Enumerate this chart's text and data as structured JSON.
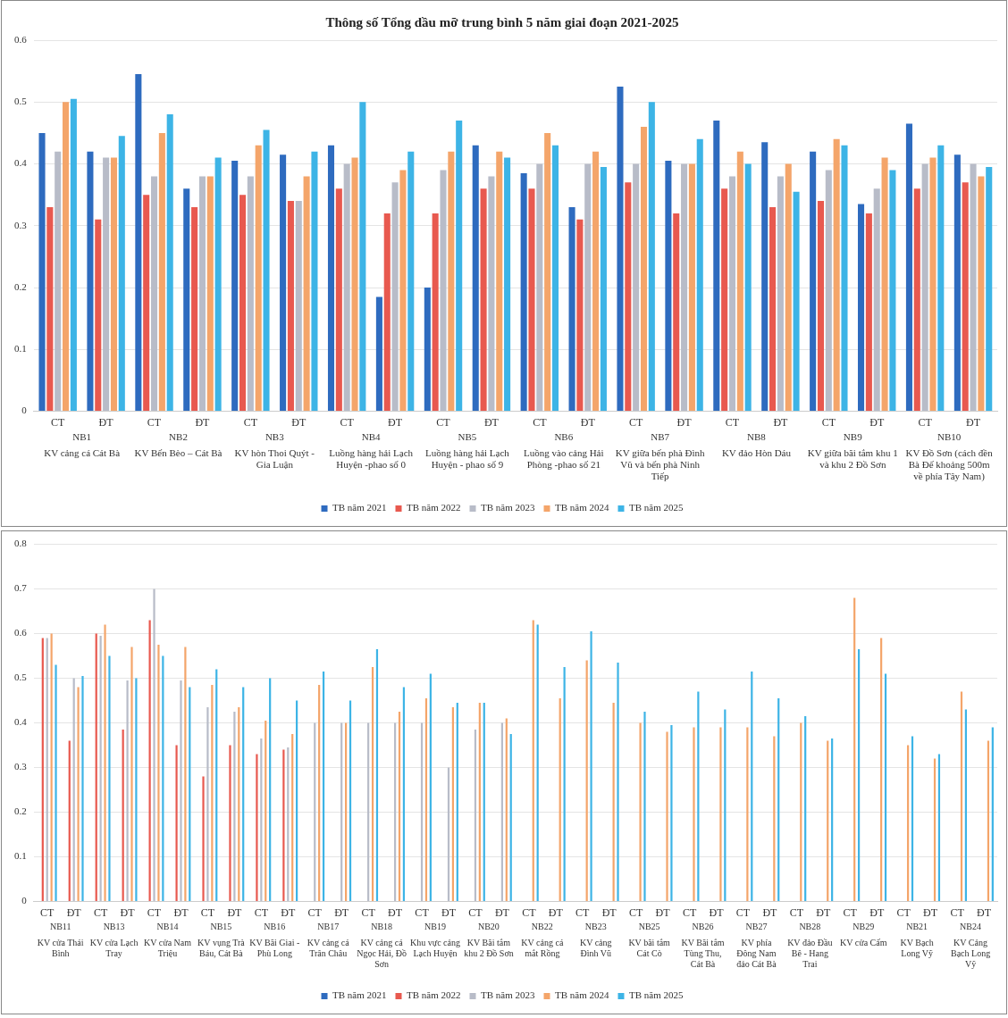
{
  "chart_data": [
    {
      "type": "bar",
      "title": "Thông số Tổng dầu mỡ trung bình 5 năm giai đoạn 2021-2025",
      "categories": [
        "CT",
        "ĐT",
        "CT",
        "ĐT",
        "CT",
        "ĐT",
        "CT",
        "ĐT",
        "CT",
        "ĐT",
        "CT",
        "ĐT",
        "CT",
        "ĐT",
        "CT",
        "ĐT",
        "CT",
        "ĐT",
        "CT",
        "ĐT"
      ],
      "series": [
        {
          "name": "TB năm 2021",
          "color": "#2e6bbf",
          "values": [
            0.45,
            0.42,
            0.545,
            0.36,
            0.405,
            0.415,
            0.43,
            0.185,
            0.2,
            0.43,
            0.385,
            0.33,
            0.525,
            0.405,
            0.47,
            0.435,
            0.42,
            0.335,
            0.465,
            0.415
          ]
        },
        {
          "name": "TB năm 2022",
          "color": "#e8594f",
          "values": [
            0.33,
            0.31,
            0.35,
            0.33,
            0.35,
            0.34,
            0.36,
            0.32,
            0.32,
            0.36,
            0.36,
            0.31,
            0.37,
            0.32,
            0.36,
            0.33,
            0.34,
            0.32,
            0.36,
            0.37
          ]
        },
        {
          "name": "TB năm 2023",
          "color": "#b8bcc8",
          "values": [
            0.42,
            0.41,
            0.38,
            0.38,
            0.38,
            0.34,
            0.4,
            0.37,
            0.39,
            0.38,
            0.4,
            0.4,
            0.4,
            0.4,
            0.38,
            0.38,
            0.39,
            0.36,
            0.4,
            0.4
          ]
        },
        {
          "name": "TB năm 2024",
          "color": "#f4a56a",
          "values": [
            0.5,
            0.41,
            0.45,
            0.38,
            0.43,
            0.38,
            0.41,
            0.39,
            0.42,
            0.42,
            0.45,
            0.42,
            0.46,
            0.4,
            0.42,
            0.4,
            0.44,
            0.41,
            0.41,
            0.38
          ]
        },
        {
          "name": "TB năm 2025",
          "color": "#3db4e6",
          "values": [
            0.505,
            0.445,
            0.48,
            0.41,
            0.455,
            0.42,
            0.5,
            0.42,
            0.47,
            0.41,
            0.43,
            0.395,
            0.5,
            0.44,
            0.4,
            0.355,
            0.43,
            0.39,
            0.43,
            0.395
          ]
        }
      ],
      "ylim": [
        0,
        0.6
      ],
      "yticks": [
        0,
        0.1,
        0.2,
        0.3,
        0.4,
        0.5,
        0.6
      ],
      "grid": "y",
      "legend": "bottom",
      "annotations": [
        "NB1",
        "KV cảng cá Cát Bà",
        "NB2",
        "KV Bến Bèo – Cát Bà",
        "NB3",
        "KV hòn Thoi Quýt - Gia Luận",
        "NB4",
        "Luồng hàng hải Lạch Huyện -phao số 0",
        "NB5",
        "Luồng hàng hải Lạch Huyện - phao số 9",
        "NB6",
        "Luồng vào cảng Hải Phòng -phao số 21",
        "NB7",
        "KV giữa bến phà Đình Vũ và bến phà Ninh Tiếp",
        "NB8",
        "KV đảo Hòn Dáu",
        "NB9",
        "KV giữa bãi tắm khu 1 và khu 2 Đồ Sơn",
        "NB10",
        "KV Đồ Sơn (cách đền Bà Đế khoảng 500m về phía Tây Nam)"
      ]
    },
    {
      "type": "bar",
      "categories": [
        "CT",
        "ĐT",
        "CT",
        "ĐT",
        "CT",
        "ĐT",
        "CT",
        "ĐT",
        "CT",
        "ĐT",
        "CT",
        "ĐT",
        "CT",
        "ĐT",
        "CT",
        "ĐT",
        "CT",
        "ĐT",
        "CT",
        "ĐT",
        "CT",
        "ĐT",
        "CT",
        "ĐT",
        "CT",
        "ĐT",
        "CT",
        "ĐT",
        "CT",
        "ĐT",
        "CT",
        "ĐT",
        "CT",
        "ĐT",
        "CT",
        "ĐT"
      ],
      "series": [
        {
          "name": "TB năm 2021",
          "color": "#2e6bbf",
          "values": [
            null,
            null,
            null,
            null,
            null,
            null,
            null,
            null,
            null,
            null,
            null,
            null,
            null,
            null,
            null,
            null,
            null,
            null,
            null,
            null,
            null,
            null,
            null,
            null,
            null,
            null,
            null,
            null,
            null,
            null,
            null,
            null,
            null,
            null,
            null,
            null
          ]
        },
        {
          "name": "TB năm 2022",
          "color": "#e8594f",
          "values": [
            0.59,
            0.36,
            0.6,
            0.385,
            0.63,
            0.35,
            0.28,
            0.35,
            0.33,
            0.34,
            null,
            null,
            null,
            null,
            null,
            null,
            null,
            null,
            null,
            null,
            null,
            null,
            null,
            null,
            null,
            null,
            null,
            null,
            null,
            null,
            null,
            null,
            null,
            null,
            null,
            null
          ]
        },
        {
          "name": "TB năm 2023",
          "color": "#b8bcc8",
          "values": [
            0.59,
            0.5,
            0.595,
            0.495,
            0.7,
            0.495,
            0.435,
            0.425,
            0.365,
            0.345,
            0.4,
            0.4,
            0.4,
            0.4,
            0.4,
            0.3,
            0.385,
            0.4,
            null,
            null,
            null,
            null,
            null,
            null,
            null,
            null,
            null,
            null,
            null,
            null,
            null,
            null,
            null,
            null,
            null,
            null
          ]
        },
        {
          "name": "TB năm 2024",
          "color": "#f4a56a",
          "values": [
            0.6,
            0.48,
            0.62,
            0.57,
            0.575,
            0.57,
            0.485,
            0.435,
            0.405,
            0.375,
            0.485,
            0.4,
            0.525,
            0.425,
            0.455,
            0.435,
            0.445,
            0.41,
            0.63,
            0.455,
            0.54,
            0.445,
            0.4,
            0.38,
            0.39,
            0.39,
            0.39,
            0.37,
            0.4,
            0.36,
            0.68,
            0.59,
            0.35,
            0.32,
            0.47,
            0.36
          ]
        },
        {
          "name": "TB năm 2025",
          "color": "#3db4e6",
          "values": [
            0.53,
            0.505,
            0.55,
            0.5,
            0.55,
            0.48,
            0.52,
            0.48,
            0.5,
            0.45,
            0.515,
            0.45,
            0.565,
            0.48,
            0.51,
            0.445,
            0.445,
            0.375,
            0.62,
            0.525,
            0.605,
            0.535,
            0.425,
            0.395,
            0.47,
            0.43,
            0.515,
            0.455,
            0.415,
            0.365,
            0.565,
            0.51,
            0.37,
            0.33,
            0.43,
            0.39
          ]
        }
      ],
      "ylim": [
        0,
        0.8
      ],
      "yticks": [
        0,
        0.1,
        0.2,
        0.3,
        0.4,
        0.5,
        0.6,
        0.7,
        0.8
      ],
      "grid": "y",
      "legend": "bottom",
      "annotations": [
        "NB11",
        "KV cửa Thái Bình",
        "NB13",
        "KV cửa Lạch Tray",
        "NB14",
        "KV cửa Nam Triệu",
        "NB15",
        "KV vụng Trà Báu, Cát Bà",
        "NB16",
        "KV Bãi Giai - Phù Long",
        "NB17",
        "KV cảng cá Trân Châu",
        "NB18",
        "KV cảng cá Ngọc Hải, Đồ Sơn",
        "NB19",
        "Khu vực cảng Lạch Huyện",
        "NB20",
        "KV Bãi tắm khu 2 Đồ Sơn",
        "NB22",
        "KV cảng cá mắt Rồng",
        "NB23",
        "KV cảng Đình Vũ",
        "NB25",
        "KV bãi tắm Cát Cò",
        "NB26",
        "KV Bãi tắm Tùng Thu, Cát Bà",
        "NB27",
        "KV phía Đông Nam đảo Cát Bà",
        "NB28",
        "KV đảo Đầu Bê - Hang Trai",
        "NB29",
        "KV cửa Cấm",
        "NB21",
        "KV Bạch Long Vỹ",
        "NB24",
        "KV Cảng Bạch Long Vỹ"
      ]
    }
  ]
}
